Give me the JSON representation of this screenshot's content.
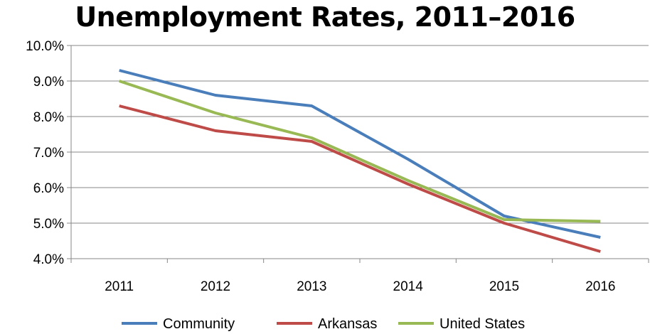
{
  "chart_data": {
    "type": "line",
    "title": "Unemployment Rates, 2011–2016",
    "xlabel": "",
    "ylabel": "",
    "categories": [
      "2011",
      "2012",
      "2013",
      "2014",
      "2015",
      "2016"
    ],
    "ylim": [
      4.0,
      10.0
    ],
    "yticks": [
      4.0,
      5.0,
      6.0,
      7.0,
      8.0,
      9.0,
      10.0
    ],
    "ytick_labels": [
      "4.0%",
      "5.0%",
      "6.0%",
      "7.0%",
      "8.0%",
      "9.0%",
      "10.0%"
    ],
    "grid": true,
    "legend_position": "bottom",
    "series": [
      {
        "name": "Community",
        "color": "#4a7ebb",
        "values": [
          9.3,
          8.6,
          8.3,
          6.8,
          5.2,
          4.6
        ]
      },
      {
        "name": "Arkansas",
        "color": "#be4b48",
        "values": [
          8.3,
          7.6,
          7.3,
          6.1,
          5.0,
          4.2
        ]
      },
      {
        "name": "United States",
        "color": "#98b954",
        "values": [
          9.0,
          8.1,
          7.4,
          6.2,
          5.1,
          5.05
        ]
      }
    ]
  }
}
